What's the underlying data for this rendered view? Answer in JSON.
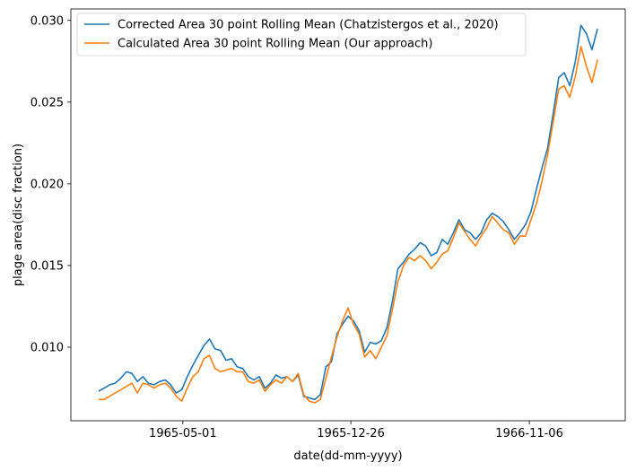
{
  "chart_data": {
    "type": "line",
    "xlabel": "date(dd-mm-yyyy)",
    "ylabel": "plage area(disc fraction)",
    "x_tick_labels": [
      "1965-05-01",
      "1965-12-26",
      "1966-11-06"
    ],
    "y_tick_labels": [
      "0.010",
      "0.015",
      "0.020",
      "0.025",
      "0.030"
    ],
    "y_ticks": [
      0.01,
      0.015,
      0.02,
      0.025,
      0.03
    ],
    "ylim": [
      0.0055,
      0.0307
    ],
    "xlim": [
      0,
      100
    ],
    "x_tick_positions": [
      20.2,
      50.5,
      82.7
    ],
    "legend_placement": "upper-left",
    "grid": false,
    "series": [
      {
        "name": "Corrected Area 30 point Rolling Mean (Chatzistergos et al., 2020)",
        "color": "#1f77b4",
        "x": [
          5.0,
          6.0,
          7.0,
          8.0,
          9.0,
          10.0,
          11.0,
          12.0,
          13.0,
          14.0,
          15.0,
          16.0,
          17.0,
          18.0,
          19.0,
          20.0,
          21.0,
          22.0,
          23.0,
          24.0,
          25.0,
          26.0,
          27.0,
          28.0,
          29.0,
          30.0,
          31.0,
          32.0,
          33.0,
          34.0,
          35.0,
          36.0,
          37.0,
          38.0,
          39.0,
          40.0,
          41.0,
          42.0,
          43.0,
          44.0,
          45.0,
          46.0,
          47.0,
          48.0,
          49.0,
          50.0,
          51.0,
          52.0,
          53.0,
          54.0,
          55.0,
          56.0,
          57.0,
          58.0,
          59.0,
          60.0,
          61.0,
          62.0,
          63.0,
          64.0,
          65.0,
          66.0,
          67.0,
          68.0,
          69.0,
          70.0,
          71.0,
          72.0,
          73.0,
          74.0,
          75.0,
          76.0,
          77.0,
          78.0,
          79.0,
          80.0,
          81.0,
          82.0,
          83.0,
          84.0,
          85.0,
          86.0,
          87.0,
          88.0,
          89.0,
          90.0,
          91.0,
          92.0,
          93.0,
          94.0,
          95.0
        ],
        "values": [
          0.0073,
          0.0075,
          0.0077,
          0.0078,
          0.0081,
          0.0085,
          0.0084,
          0.0079,
          0.0082,
          0.0078,
          0.0077,
          0.0079,
          0.008,
          0.0077,
          0.0072,
          0.0074,
          0.0082,
          0.0089,
          0.0095,
          0.0101,
          0.0105,
          0.0099,
          0.0098,
          0.0092,
          0.0093,
          0.0088,
          0.0087,
          0.0082,
          0.008,
          0.0082,
          0.0075,
          0.0078,
          0.0083,
          0.0081,
          0.0082,
          0.0079,
          0.0083,
          0.007,
          0.0069,
          0.0068,
          0.0071,
          0.0088,
          0.0091,
          0.0108,
          0.0114,
          0.0119,
          0.0116,
          0.011,
          0.0097,
          0.0103,
          0.0102,
          0.0104,
          0.0112,
          0.0128,
          0.0148,
          0.0152,
          0.0157,
          0.016,
          0.0164,
          0.0162,
          0.0156,
          0.0158,
          0.0166,
          0.0163,
          0.017,
          0.0178,
          0.0172,
          0.017,
          0.0166,
          0.017,
          0.0178,
          0.0182,
          0.018,
          0.0177,
          0.0172,
          0.0166,
          0.017,
          0.0175,
          0.0183,
          0.0197,
          0.021,
          0.0222,
          0.0243,
          0.0265,
          0.0268,
          0.026,
          0.0275,
          0.0297,
          0.0292,
          0.0282,
          0.0295
        ]
      },
      {
        "name": "Calculated Area 30 point Rolling Mean (Our approach)",
        "color": "#ff7f0e",
        "x": [
          5.0,
          6.0,
          7.0,
          8.0,
          9.0,
          10.0,
          11.0,
          12.0,
          13.0,
          14.0,
          15.0,
          16.0,
          17.0,
          18.0,
          19.0,
          20.0,
          21.0,
          22.0,
          23.0,
          24.0,
          25.0,
          26.0,
          27.0,
          28.0,
          29.0,
          30.0,
          31.0,
          32.0,
          33.0,
          34.0,
          35.0,
          36.0,
          37.0,
          38.0,
          39.0,
          40.0,
          41.0,
          42.0,
          43.0,
          44.0,
          45.0,
          46.0,
          47.0,
          48.0,
          49.0,
          50.0,
          51.0,
          52.0,
          53.0,
          54.0,
          55.0,
          56.0,
          57.0,
          58.0,
          59.0,
          60.0,
          61.0,
          62.0,
          63.0,
          64.0,
          65.0,
          66.0,
          67.0,
          68.0,
          69.0,
          70.0,
          71.0,
          72.0,
          73.0,
          74.0,
          75.0,
          76.0,
          77.0,
          78.0,
          79.0,
          80.0,
          81.0,
          82.0,
          83.0,
          84.0,
          85.0,
          86.0,
          87.0,
          88.0,
          89.0,
          90.0,
          91.0,
          92.0,
          93.0,
          94.0,
          95.0
        ],
        "values": [
          0.0068,
          0.0068,
          0.007,
          0.0072,
          0.0074,
          0.0076,
          0.0078,
          0.0072,
          0.0078,
          0.0077,
          0.0075,
          0.0077,
          0.0078,
          0.0075,
          0.007,
          0.0067,
          0.0075,
          0.0082,
          0.0085,
          0.0093,
          0.0095,
          0.0087,
          0.0085,
          0.0086,
          0.0087,
          0.0085,
          0.0085,
          0.0079,
          0.0078,
          0.008,
          0.0073,
          0.0077,
          0.008,
          0.0078,
          0.0082,
          0.0079,
          0.0084,
          0.0071,
          0.0067,
          0.0066,
          0.0068,
          0.0081,
          0.0094,
          0.0106,
          0.0116,
          0.0124,
          0.0114,
          0.0108,
          0.0094,
          0.0098,
          0.0093,
          0.01,
          0.0107,
          0.0123,
          0.014,
          0.015,
          0.0155,
          0.0153,
          0.0156,
          0.0153,
          0.0148,
          0.0152,
          0.0157,
          0.0159,
          0.0167,
          0.0176,
          0.0171,
          0.0166,
          0.0162,
          0.0168,
          0.0173,
          0.018,
          0.0176,
          0.0172,
          0.017,
          0.0163,
          0.0168,
          0.0168,
          0.0178,
          0.0188,
          0.0202,
          0.0218,
          0.0238,
          0.0258,
          0.026,
          0.0253,
          0.0266,
          0.0284,
          0.0272,
          0.0262,
          0.0276
        ]
      }
    ]
  }
}
